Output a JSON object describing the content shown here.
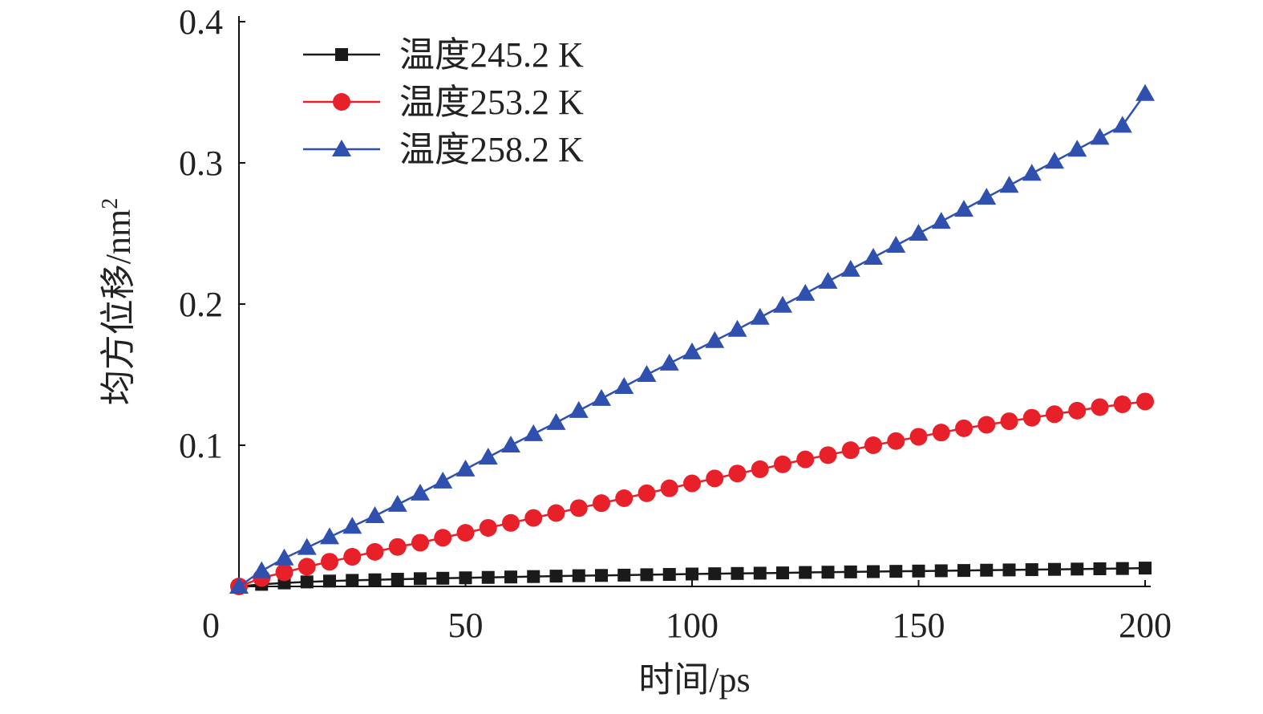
{
  "chart_data": {
    "type": "line",
    "xlabel": "时间/ps",
    "ylabel": "均方位移/nm",
    "ylabel_sup": "2",
    "xlim": [
      0,
      200
    ],
    "ylim": [
      0,
      0.4
    ],
    "x_ticks": [
      0,
      50,
      100,
      150,
      200
    ],
    "x_tick_labels": [
      "0",
      "50",
      "100",
      "150",
      "200"
    ],
    "y_ticks": [
      0.1,
      0.2,
      0.3,
      0.4
    ],
    "y_tick_labels": [
      "0.1",
      "0.2",
      "0.3",
      "0.4"
    ],
    "grid": false,
    "legend_position": "top-left",
    "x": [
      0,
      5,
      10,
      15,
      20,
      25,
      30,
      35,
      40,
      45,
      50,
      55,
      60,
      65,
      70,
      75,
      80,
      85,
      90,
      95,
      100,
      105,
      110,
      115,
      120,
      125,
      130,
      135,
      140,
      145,
      150,
      155,
      160,
      165,
      170,
      175,
      180,
      185,
      190,
      195,
      200
    ],
    "series": [
      {
        "name": "温度245.2 K",
        "color": "#1a1a1a",
        "marker": "square",
        "values": [
          0.0,
          0.0015,
          0.0025,
          0.0032,
          0.0038,
          0.0043,
          0.0047,
          0.0051,
          0.0055,
          0.0058,
          0.0061,
          0.0064,
          0.0067,
          0.007,
          0.0073,
          0.0076,
          0.0078,
          0.008,
          0.0083,
          0.0085,
          0.0088,
          0.009,
          0.0092,
          0.0094,
          0.0096,
          0.0099,
          0.0101,
          0.0103,
          0.0105,
          0.0107,
          0.0109,
          0.0111,
          0.0113,
          0.0115,
          0.0117,
          0.0119,
          0.0121,
          0.0123,
          0.0125,
          0.0127,
          0.013
        ]
      },
      {
        "name": "温度253.2 K",
        "color": "#e8202a",
        "marker": "circle",
        "values": [
          0.0,
          0.006,
          0.01,
          0.014,
          0.0175,
          0.021,
          0.0245,
          0.028,
          0.031,
          0.0345,
          0.038,
          0.0415,
          0.045,
          0.0485,
          0.052,
          0.0555,
          0.059,
          0.0625,
          0.066,
          0.0695,
          0.073,
          0.0765,
          0.08,
          0.083,
          0.0865,
          0.09,
          0.093,
          0.0965,
          0.1,
          0.103,
          0.106,
          0.109,
          0.112,
          0.1145,
          0.117,
          0.1195,
          0.122,
          0.1245,
          0.127,
          0.129,
          0.131
        ]
      },
      {
        "name": "温度258.2 K",
        "color": "#3050b0",
        "marker": "triangle",
        "values": [
          0.0,
          0.011,
          0.02,
          0.0275,
          0.035,
          0.0425,
          0.05,
          0.058,
          0.066,
          0.0745,
          0.083,
          0.0915,
          0.1,
          0.108,
          0.116,
          0.1245,
          0.133,
          0.1415,
          0.15,
          0.158,
          0.166,
          0.174,
          0.182,
          0.1905,
          0.199,
          0.2075,
          0.216,
          0.2245,
          0.233,
          0.2415,
          0.25,
          0.2585,
          0.267,
          0.2755,
          0.284,
          0.2925,
          0.301,
          0.3095,
          0.318,
          0.3265,
          0.349
        ]
      }
    ]
  }
}
